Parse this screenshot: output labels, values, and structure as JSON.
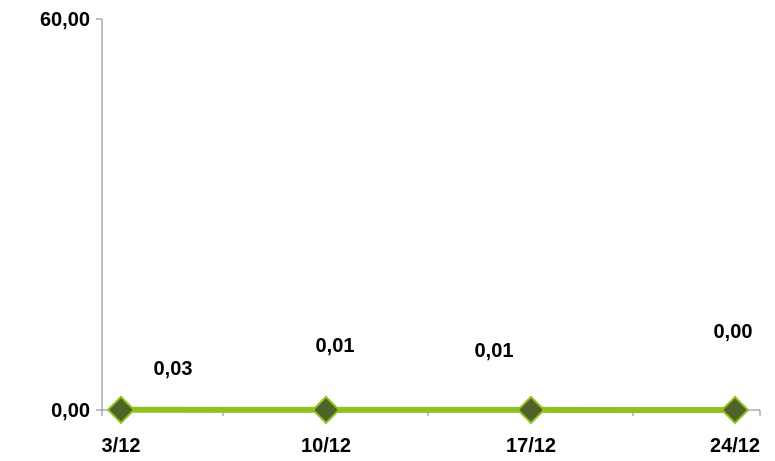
{
  "chart_data": {
    "type": "line",
    "categories": [
      "3/12",
      "10/12",
      "17/12",
      "24/12"
    ],
    "series": [
      {
        "values": [
          0.03,
          0.01,
          0.01,
          0.0
        ],
        "data_labels": [
          "0,03",
          "0,01",
          "0,01",
          "0,00"
        ]
      }
    ],
    "ylim": [
      0,
      60
    ],
    "ytick_labels": [
      "0,00",
      "60,00"
    ],
    "grid": false,
    "legend": "none",
    "colors": {
      "line": "#8DC21F",
      "marker_fill": "#4F6228",
      "marker_stroke": "#8DC21F",
      "axis": "#808080"
    }
  }
}
